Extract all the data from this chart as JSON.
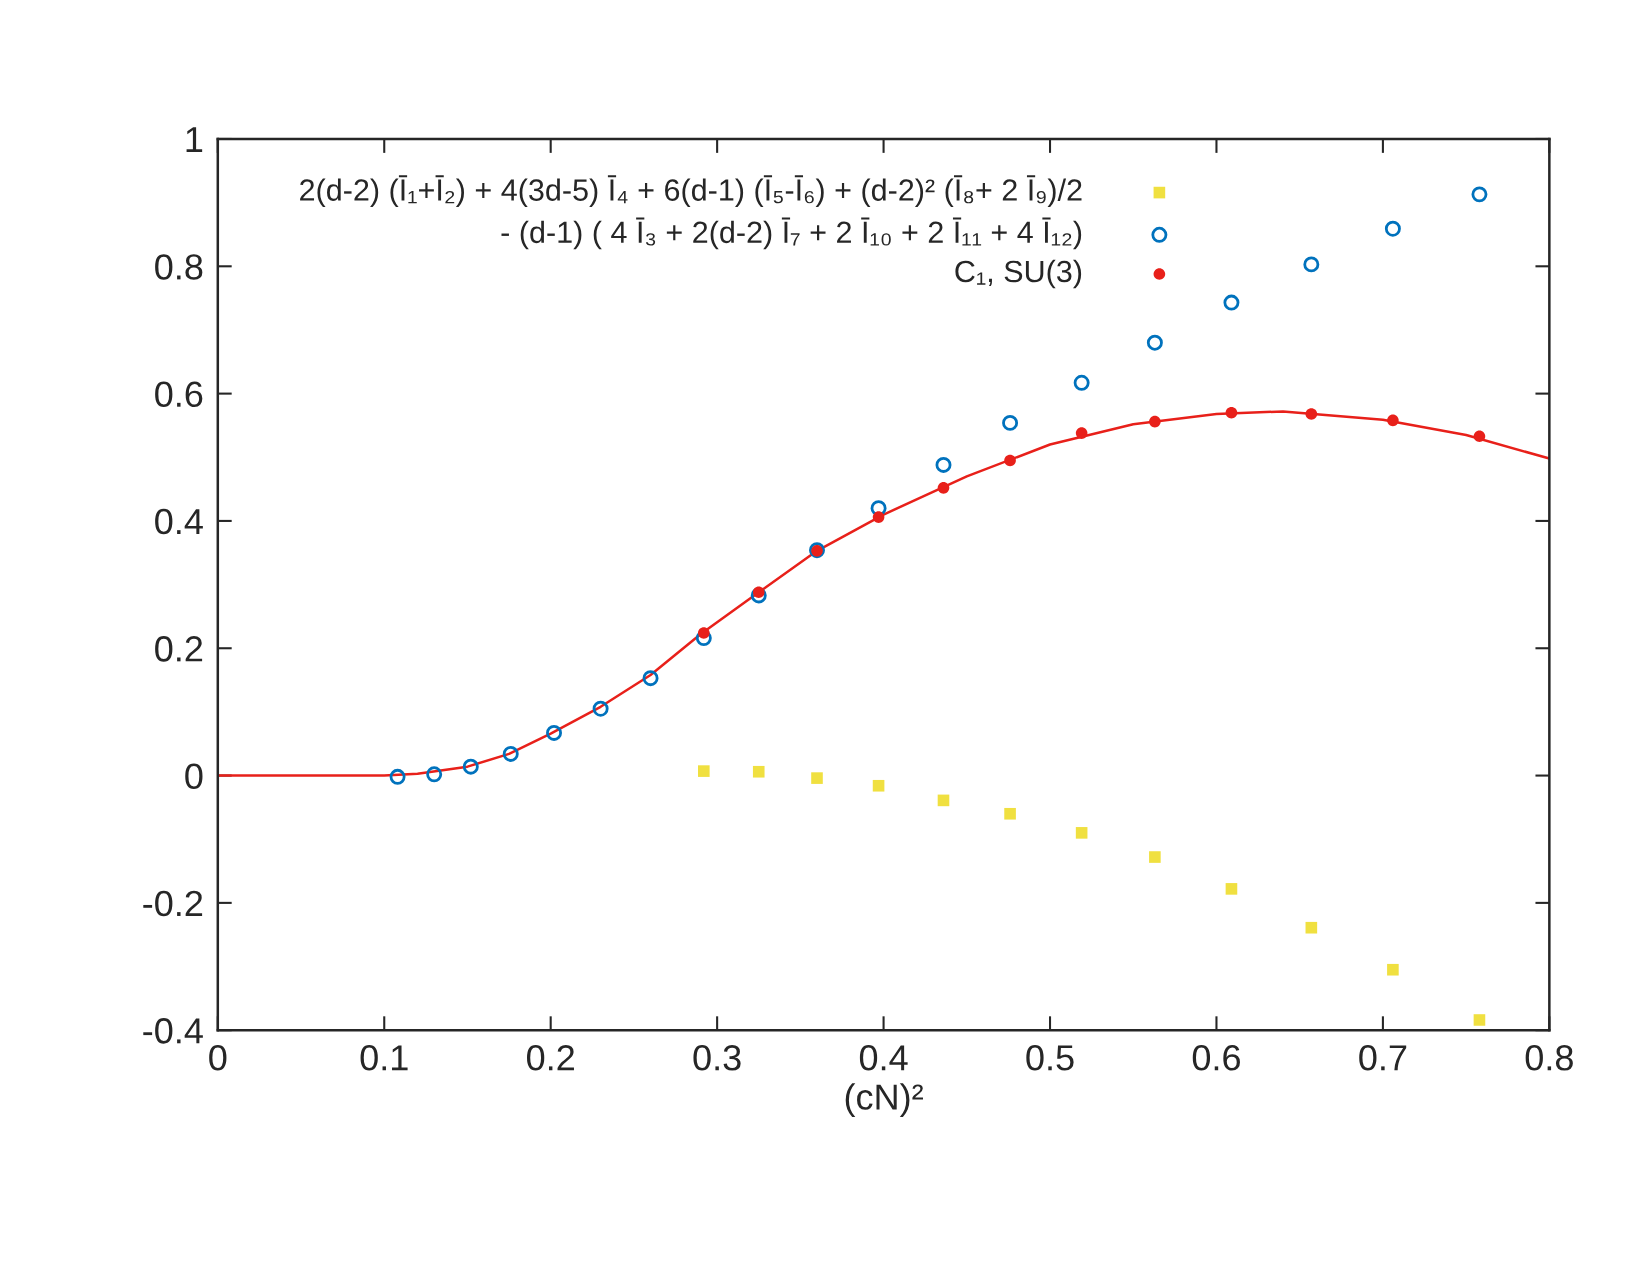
{
  "chart_data": {
    "type": "scatter",
    "xlabel": "(cN)²",
    "xlim": [
      0,
      0.8
    ],
    "ylim": [
      -0.4,
      1
    ],
    "xticks": [
      0,
      0.1,
      0.2,
      0.3,
      0.4,
      0.5,
      0.6,
      0.7,
      0.8
    ],
    "yticks": [
      -0.4,
      -0.2,
      0,
      0.2,
      0.4,
      0.6,
      0.8,
      1
    ],
    "grid": false,
    "legend": "top left",
    "series": [
      {
        "name": "2(d-2) (Ī₁+Ī₂) + 4(3d-5) Ī₄ + 6(d-1) (Ī₅-Ī₆) + (d-2)² (Ī₈+ 2 Ī₉)/2",
        "marker": "square",
        "color": "#f0e040",
        "x": [
          0.292,
          0.325,
          0.36,
          0.397,
          0.436,
          0.476,
          0.519,
          0.563,
          0.609,
          0.657,
          0.706,
          0.758
        ],
        "values": [
          0.007,
          0.006,
          -0.004,
          -0.016,
          -0.039,
          -0.06,
          -0.09,
          -0.128,
          -0.178,
          -0.239,
          -0.305,
          -0.384
        ]
      },
      {
        "name": "- (d-1) ( 4 Ī₃ + 2(d-2) Ī₇ + 2 Ī₁₀ + 2 Ī₁₁ + 4 Ī₁₂)",
        "marker": "circle",
        "color": "#0072bd",
        "x": [
          0.108,
          0.13,
          0.152,
          0.176,
          0.202,
          0.23,
          0.26,
          0.292,
          0.325,
          0.36,
          0.397,
          0.436,
          0.476,
          0.519,
          0.563,
          0.609,
          0.657,
          0.706,
          0.758
        ],
        "values": [
          -0.002,
          0.002,
          0.014,
          0.034,
          0.067,
          0.105,
          0.153,
          0.216,
          0.283,
          0.354,
          0.42,
          0.488,
          0.554,
          0.617,
          0.68,
          0.743,
          0.803,
          0.859,
          0.913
        ]
      },
      {
        "name": "C₁, SU(3)",
        "marker": "circle",
        "color": "#e8201a",
        "x": [
          0.292,
          0.325,
          0.36,
          0.397,
          0.436,
          0.476,
          0.519,
          0.563,
          0.609,
          0.657,
          0.706,
          0.758
        ],
        "values": [
          0.224,
          0.288,
          0.353,
          0.406,
          0.452,
          0.495,
          0.538,
          0.556,
          0.57,
          0.568,
          0.558,
          0.533
        ]
      },
      {
        "type": "line",
        "marker": "none",
        "line_style": "solid",
        "color": "#e8201a",
        "x": [
          0,
          0.05,
          0.08,
          0.1,
          0.12,
          0.15,
          0.175,
          0.2,
          0.23,
          0.26,
          0.29,
          0.325,
          0.36,
          0.4,
          0.45,
          0.5,
          0.55,
          0.6,
          0.64,
          0.7,
          0.75,
          0.8
        ],
        "values": [
          0,
          0,
          0,
          0,
          0.003,
          0.014,
          0.034,
          0.066,
          0.108,
          0.158,
          0.222,
          0.288,
          0.353,
          0.41,
          0.47,
          0.52,
          0.552,
          0.568,
          0.572,
          0.559,
          0.535,
          0.498
        ]
      }
    ]
  }
}
